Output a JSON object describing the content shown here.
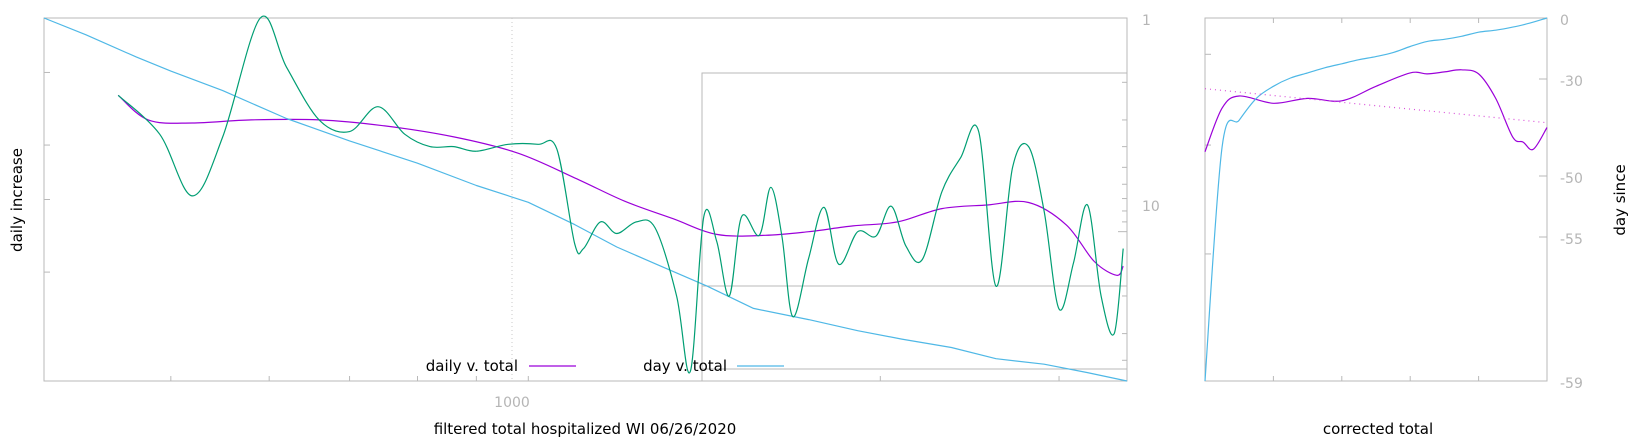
{
  "colors": {
    "axis": "#b9b9b9",
    "tick_text": "#b5b5b5",
    "daily_series": "#9b00d9",
    "day_series": "#4fb8e6",
    "raw_series": "#009e73",
    "trend": "#d94fd9",
    "zoom_box": "#b9b9b9"
  },
  "chart_data": [
    {
      "type": "line",
      "xscale": "log",
      "xlabel": "filtered total hospitalized WI 06/26/2020",
      "ylabel": "daily increase",
      "y2label": "",
      "x_ticks": [
        1000
      ],
      "x_tick_labels": [
        "1000"
      ],
      "y2_ticks": [
        1,
        10
      ],
      "y2_tick_labels": [
        "1",
        "10"
      ],
      "xlim": [
        300,
        3500
      ],
      "y2lim": [
        1,
        50
      ],
      "y2scale": "log",
      "grid": "vertical dotted at 1000",
      "legend": "bottom-center",
      "series": [
        {
          "name": "daily v. total",
          "role": "smoothed daily",
          "x": [
            355,
            380,
            420,
            480,
            560,
            650,
            760,
            880,
            1000,
            1120,
            1250,
            1380,
            1540,
            1700,
            1880,
            2080,
            2300,
            2550,
            2800,
            3050,
            3250,
            3420,
            3470
          ],
          "y": [
            2.3,
            3.0,
            3.1,
            3.0,
            3.0,
            3.2,
            3.6,
            4.3,
            5.6,
            7.2,
            8.7,
            10.3,
            10.4,
            10.0,
            9.4,
            9.0,
            7.8,
            7.5,
            7.3,
            9.3,
            13.8,
            16.0,
            14.5
          ]
        },
        {
          "name": "day v. total",
          "role": "day since",
          "x": [
            300,
            330,
            370,
            400,
            450,
            520,
            600,
            700,
            800,
            900,
            1000,
            1100,
            1200,
            1350,
            1500,
            1700,
            1900,
            2100,
            2350,
            2600,
            2900,
            3200,
            3500
          ],
          "y": [
            0,
            -3,
            -7,
            -9.5,
            -13,
            -18,
            -22,
            -26,
            -30,
            -33,
            -37,
            -41,
            -44,
            -48,
            -52,
            -54,
            -56,
            -57.5,
            -59,
            -61,
            -62,
            -63.5,
            -65
          ]
        },
        {
          "name": "",
          "role": "raw daily",
          "x": [
            355,
            390,
            420,
            450,
            490,
            520,
            560,
            600,
            640,
            680,
            720,
            760,
            800,
            860,
            920,
            960,
            1000,
            1020,
            1060,
            1100,
            1150,
            1200,
            1260,
            1300,
            1340,
            1380,
            1420,
            1460,
            1520,
            1560,
            1600,
            1640,
            1700,
            1760,
            1820,
            1900,
            1980,
            2050,
            2120,
            2200,
            2300,
            2400,
            2500,
            2600,
            2700,
            2800,
            2900,
            3000,
            3100,
            3200,
            3300,
            3400,
            3470
          ],
          "y": [
            2.3,
            3.5,
            6.8,
            3.6,
            1.0,
            1.7,
            3.0,
            3.4,
            2.6,
            3.5,
            4.0,
            4.0,
            4.2,
            3.9,
            3.9,
            4.1,
            11.4,
            12.0,
            9.0,
            10.2,
            9.0,
            9.6,
            20.0,
            45.0,
            8.5,
            11.1,
            20.0,
            8.5,
            10.4,
            6.2,
            10.5,
            25.0,
            13.3,
            7.7,
            14.2,
            10.0,
            10.5,
            7.6,
            11.7,
            13.5,
            6.5,
            4.5,
            3.4,
            18.0,
            5.0,
            4.0,
            8.0,
            23.0,
            14.0,
            7.5,
            20.0,
            30.0,
            12.0
          ]
        }
      ]
    },
    {
      "type": "line",
      "xlabel": "corrected total",
      "ylabel": "day since",
      "y_ticks": [
        0,
        -30,
        -50,
        -55,
        -59
      ],
      "y_tick_labels": [
        "0",
        "-30",
        "-50",
        "-55",
        "-59"
      ],
      "ylim": [
        -59,
        0
      ],
      "legend": "none",
      "series": [
        {
          "name": "",
          "role": "smoothed daily",
          "x": [
            0,
            0.05,
            0.1,
            0.2,
            0.3,
            0.4,
            0.5,
            0.6,
            0.65,
            0.7,
            0.75,
            0.8,
            0.85,
            0.9,
            0.93,
            0.96,
            1.0
          ],
          "y": [
            -45,
            -36,
            -33.5,
            -35,
            -34,
            -34.5,
            -31.5,
            -27,
            -27.5,
            -26.5,
            -25.5,
            -27.5,
            -34,
            -42,
            -43,
            -44.5,
            -40
          ]
        },
        {
          "name": "",
          "role": "day since",
          "x": [
            0,
            0.05,
            0.1,
            0.15,
            0.2,
            0.25,
            0.3,
            0.35,
            0.4,
            0.45,
            0.5,
            0.55,
            0.6,
            0.65,
            0.7,
            0.75,
            0.8,
            0.85,
            0.9,
            0.95,
            1.0
          ],
          "y": [
            -59,
            -44,
            -38.5,
            -34,
            -31.5,
            -29.5,
            -27,
            -24.5,
            -22.5,
            -20.5,
            -19,
            -17,
            -14,
            -11.5,
            -10.5,
            -9,
            -7,
            -6,
            -4.5,
            -2.5,
            0
          ]
        },
        {
          "name": "",
          "role": "trend",
          "x": [
            0,
            1.0
          ],
          "y": [
            -32,
            -39
          ]
        }
      ]
    }
  ]
}
